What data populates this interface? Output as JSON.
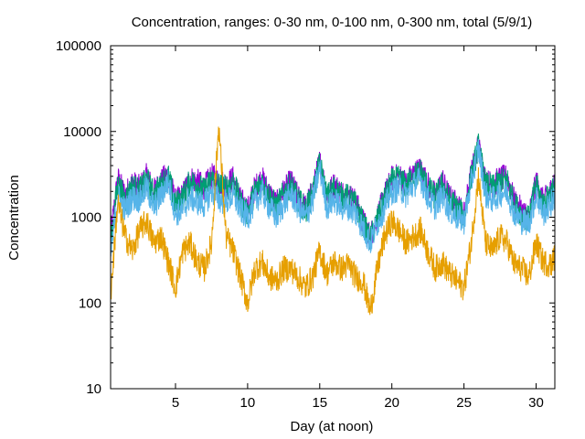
{
  "chart_data": {
    "type": "line",
    "title": "Concentration, ranges: 0-30 nm, 0-100 nm, 0-300 nm, total (5/9/1)",
    "xlabel": "Day (at noon)",
    "ylabel": "Concentration",
    "xlim": [
      0.5,
      31.3
    ],
    "ylim": [
      10,
      100000
    ],
    "y_scale": "log",
    "grid": false,
    "legend": "none",
    "x_ticks": [
      5,
      10,
      15,
      20,
      25,
      30
    ],
    "x_tick_labels": [
      "5",
      "10",
      "15",
      "20",
      "25",
      "30"
    ],
    "y_ticks": [
      10,
      100,
      1000,
      10000,
      100000
    ],
    "y_tick_labels": [
      "10",
      "100",
      "1000",
      "10000",
      "100000"
    ],
    "series": [
      {
        "color": "#9400d3",
        "x": [
          0.5,
          1.0,
          1.5,
          2.0,
          2.5,
          3.0,
          3.5,
          4.0,
          4.5,
          5.0,
          5.5,
          6.0,
          6.5,
          7.0,
          7.5,
          8.0,
          8.5,
          9.0,
          9.5,
          10.0,
          10.5,
          11.0,
          11.5,
          12.0,
          12.5,
          13.0,
          13.5,
          14.0,
          14.5,
          15.0,
          15.5,
          16.0,
          16.5,
          17.0,
          17.5,
          18.0,
          18.5,
          19.0,
          19.5,
          20.0,
          20.5,
          21.0,
          21.5,
          22.0,
          22.5,
          23.0,
          23.5,
          24.0,
          24.5,
          25.0,
          25.5,
          26.0,
          26.5,
          27.0,
          27.5,
          28.0,
          28.5,
          29.0,
          29.5,
          30.0,
          30.5,
          31.0,
          31.3
        ],
        "y": [
          600,
          2800,
          1800,
          2500,
          2200,
          3000,
          2000,
          2600,
          3200,
          1500,
          1800,
          2800,
          2600,
          2200,
          3000,
          2600,
          2400,
          2800,
          1600,
          1200,
          2200,
          2800,
          1900,
          1400,
          2000,
          2600,
          1700,
          1300,
          2000,
          4500,
          1800,
          2400,
          1900,
          1800,
          1500,
          900,
          600,
          1000,
          1800,
          2800,
          3000,
          2500,
          3200,
          3600,
          2400,
          1800,
          2600,
          1700,
          1400,
          1100,
          3200,
          7000,
          2600,
          2400,
          2800,
          2900,
          1500,
          1200,
          1000,
          2600,
          1500,
          2000,
          2400
        ]
      },
      {
        "color": "#009e73",
        "x": [
          0.5,
          1.0,
          1.5,
          2.0,
          2.5,
          3.0,
          3.5,
          4.0,
          4.5,
          5.0,
          5.5,
          6.0,
          6.5,
          7.0,
          7.5,
          8.0,
          8.5,
          9.0,
          9.5,
          10.0,
          10.5,
          11.0,
          11.5,
          12.0,
          12.5,
          13.0,
          13.5,
          14.0,
          14.5,
          15.0,
          15.5,
          16.0,
          16.5,
          17.0,
          17.5,
          18.0,
          18.5,
          19.0,
          19.5,
          20.0,
          20.5,
          21.0,
          21.5,
          22.0,
          22.5,
          23.0,
          23.5,
          24.0,
          24.5,
          25.0,
          25.5,
          26.0,
          26.5,
          27.0,
          27.5,
          28.0,
          28.5,
          29.0,
          29.5,
          30.0,
          30.5,
          31.0,
          31.3
        ],
        "y": [
          500,
          2500,
          1600,
          2300,
          2000,
          2800,
          1800,
          2400,
          3000,
          1400,
          1700,
          2600,
          2400,
          2000,
          2800,
          2400,
          2200,
          2600,
          1500,
          1100,
          2000,
          2600,
          1800,
          1300,
          1900,
          2400,
          1600,
          1200,
          1900,
          4200,
          1700,
          2200,
          1800,
          1700,
          1400,
          850,
          550,
          950,
          1700,
          2600,
          2800,
          2300,
          3000,
          3400,
          2200,
          1700,
          2400,
          1600,
          1300,
          1000,
          3000,
          6800,
          2400,
          2200,
          2600,
          2700,
          1400,
          1100,
          950,
          2400,
          1400,
          1900,
          2200
        ]
      },
      {
        "color": "#56b4e9",
        "x": [
          0.5,
          1.0,
          1.5,
          2.0,
          2.5,
          3.0,
          3.5,
          4.0,
          4.5,
          5.0,
          5.5,
          6.0,
          6.5,
          7.0,
          7.5,
          8.0,
          8.5,
          9.0,
          9.5,
          10.0,
          10.5,
          11.0,
          11.5,
          12.0,
          12.5,
          13.0,
          13.5,
          14.0,
          14.5,
          15.0,
          15.5,
          16.0,
          16.5,
          17.0,
          17.5,
          18.0,
          18.5,
          19.0,
          19.5,
          20.0,
          20.5,
          21.0,
          21.5,
          22.0,
          22.5,
          23.0,
          23.5,
          24.0,
          24.5,
          25.0,
          25.5,
          26.0,
          26.5,
          27.0,
          27.5,
          28.0,
          28.5,
          29.0,
          29.5,
          30.0,
          30.5,
          31.0,
          31.3
        ],
        "y": [
          350,
          1800,
          1200,
          1700,
          1600,
          2200,
          1300,
          1800,
          2600,
          1100,
          1200,
          1700,
          1500,
          1400,
          2000,
          1600,
          1500,
          1800,
          1200,
          1000,
          1500,
          2000,
          1300,
          1000,
          1400,
          1900,
          1300,
          1000,
          1500,
          3800,
          1300,
          1600,
          1300,
          1300,
          1100,
          750,
          500,
          850,
          1300,
          2000,
          2200,
          1800,
          2400,
          2800,
          1700,
          1300,
          1800,
          1200,
          1000,
          900,
          2500,
          6500,
          1800,
          1600,
          1900,
          2000,
          1100,
          900,
          850,
          1800,
          1100,
          1400,
          1700
        ]
      },
      {
        "color": "#e69f00",
        "x": [
          0.5,
          1.0,
          1.5,
          2.0,
          2.5,
          3.0,
          3.5,
          4.0,
          4.5,
          5.0,
          5.5,
          6.0,
          6.5,
          7.0,
          7.5,
          8.0,
          8.5,
          9.0,
          9.5,
          10.0,
          10.5,
          11.0,
          11.5,
          12.0,
          12.5,
          13.0,
          13.5,
          14.0,
          14.5,
          15.0,
          15.5,
          16.0,
          16.5,
          17.0,
          17.5,
          18.0,
          18.5,
          19.0,
          19.5,
          20.0,
          20.5,
          21.0,
          21.5,
          22.0,
          22.5,
          23.0,
          23.5,
          24.0,
          24.5,
          25.0,
          25.5,
          26.0,
          26.5,
          27.0,
          27.5,
          28.0,
          28.5,
          29.0,
          29.5,
          30.0,
          30.5,
          31.0,
          31.3
        ],
        "y": [
          120,
          1500,
          600,
          400,
          700,
          900,
          500,
          600,
          300,
          150,
          400,
          500,
          300,
          250,
          500,
          12000,
          600,
          400,
          200,
          100,
          250,
          300,
          200,
          180,
          250,
          250,
          200,
          150,
          200,
          400,
          220,
          300,
          250,
          280,
          200,
          180,
          80,
          250,
          600,
          900,
          700,
          500,
          600,
          700,
          400,
          250,
          300,
          220,
          180,
          150,
          500,
          3000,
          500,
          400,
          600,
          500,
          280,
          250,
          200,
          500,
          300,
          280,
          350
        ]
      }
    ]
  }
}
